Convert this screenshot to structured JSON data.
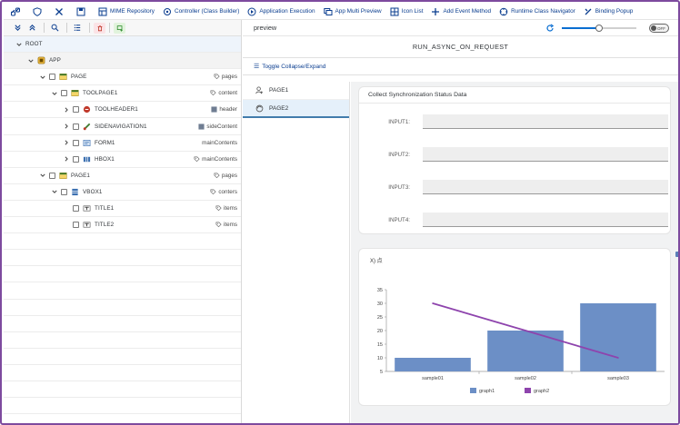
{
  "toolbar": {
    "items": [
      {
        "icon": "link-icon",
        "label": ""
      },
      {
        "icon": "shield-icon",
        "label": ""
      },
      {
        "icon": "tools-icon",
        "label": ""
      },
      {
        "icon": "save-icon",
        "label": ""
      },
      {
        "icon": "mime-icon",
        "label": "MIME Repository"
      },
      {
        "icon": "controller-icon",
        "label": "Controller (Class Builder)"
      },
      {
        "icon": "execute-icon",
        "label": "Application Execution"
      },
      {
        "icon": "preview-icon",
        "label": "App Multi Preview"
      },
      {
        "icon": "icon-list-icon",
        "label": "Icon List"
      },
      {
        "icon": "add-event-icon",
        "label": "Add Event Method"
      },
      {
        "icon": "navigator-icon",
        "label": "Runtime Class Navigator"
      },
      {
        "icon": "binding-icon",
        "label": "Binding Popup"
      }
    ]
  },
  "tree": {
    "rows": [
      {
        "label": "ROOT",
        "aggregation": "",
        "level": 0,
        "type": "root"
      },
      {
        "label": "APP",
        "aggregation": "",
        "level": 1,
        "type": "app"
      },
      {
        "label": "PAGE",
        "aggregation": "pages",
        "level": 2,
        "type": "page"
      },
      {
        "label": "TOOLPAGE1",
        "aggregation": "content",
        "level": 3,
        "type": "toolpage"
      },
      {
        "label": "TOOLHEADER1",
        "aggregation": "header",
        "level": 4,
        "type": "toolheader"
      },
      {
        "label": "SIDENAVIGATION1",
        "aggregation": "sideContent",
        "level": 4,
        "type": "sidenav"
      },
      {
        "label": "FORM1",
        "aggregation": "mainContents",
        "level": 4,
        "type": "form"
      },
      {
        "label": "HBOX1",
        "aggregation": "mainContents",
        "level": 4,
        "type": "hbox"
      },
      {
        "label": "PAGE1",
        "aggregation": "pages",
        "level": 2,
        "type": "page"
      },
      {
        "label": "VBOX1",
        "aggregation": "conters",
        "level": 3,
        "type": "vbox"
      },
      {
        "label": "TITLE1",
        "aggregation": "items",
        "level": 4,
        "type": "title"
      },
      {
        "label": "TITLE2",
        "aggregation": "items",
        "level": 4,
        "type": "title"
      }
    ]
  },
  "preview": {
    "header_title": "preview",
    "slider_value": 0.5,
    "toggle_label": "OFF",
    "page_title": "RUN_ASYNC_ON_REQUEST",
    "toggle_button": "Toggle Collapse/Expand",
    "nav_items": [
      {
        "label": "PAGE1",
        "selected": false
      },
      {
        "label": "PAGE2",
        "selected": true
      }
    ],
    "form_title": "Collect Synchronization Status Data",
    "form_fields": [
      {
        "label": "INPUT1:",
        "value": ""
      },
      {
        "label": "INPUT2:",
        "value": ""
      },
      {
        "label": "INPUT3:",
        "value": ""
      },
      {
        "label": "INPUT4:",
        "value": ""
      }
    ]
  },
  "chart_data": {
    "type": "bar",
    "title": "",
    "unit_label": "X) 点",
    "categories": [
      "sample01",
      "sample02",
      "sample03"
    ],
    "ylim": [
      5,
      35
    ],
    "yticks": [
      5,
      10,
      15,
      20,
      25,
      30,
      35
    ],
    "series": [
      {
        "name": "graph1",
        "type": "bar",
        "color": "#6c8fc6",
        "values": [
          10,
          20,
          30
        ]
      },
      {
        "name": "graph2",
        "type": "line",
        "color": "#8e44ad",
        "values": [
          30,
          20,
          10
        ]
      }
    ],
    "legend": "bottom-center",
    "grid": false
  }
}
